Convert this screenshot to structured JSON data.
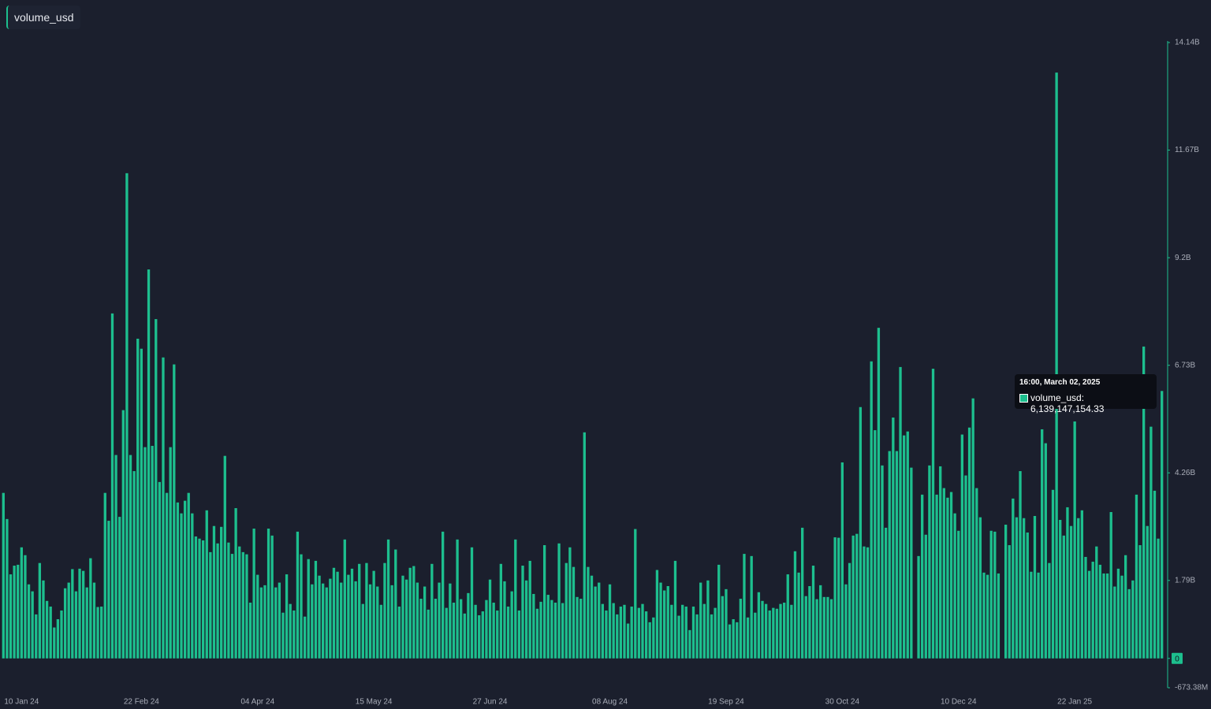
{
  "chart_data": {
    "type": "bar",
    "legend": "volume_usd",
    "series": [
      {
        "name": "volume_usd",
        "color": "#1dbf8e",
        "values": [
          3.8,
          3.2,
          1.93,
          2.13,
          2.15,
          2.55,
          2.37,
          1.7,
          1.54,
          1.01,
          2.19,
          1.79,
          1.32,
          1.19,
          0.71,
          0.9,
          1.1,
          1.61,
          1.74,
          2.05,
          1.54,
          2.06,
          2.01,
          1.63,
          2.3,
          1.74,
          1.18,
          1.19,
          3.8,
          3.16,
          7.92,
          4.67,
          3.25,
          5.7,
          11.14,
          4.67,
          4.3,
          7.34,
          7.11,
          4.85,
          8.93,
          4.88,
          7.79,
          4.05,
          6.91,
          3.8,
          4.85,
          6.75,
          3.58,
          3.33,
          3.62,
          3.8,
          3.33,
          2.8,
          2.75,
          2.71,
          3.4,
          2.44,
          3.04,
          2.64,
          3.02,
          4.65,
          2.66,
          2.4,
          3.45,
          2.57,
          2.44,
          2.39,
          1.28,
          2.98,
          1.92,
          1.63,
          1.68,
          2.98,
          2.82,
          1.63,
          1.74,
          1.05,
          1.93,
          1.25,
          1.1,
          2.91,
          2.39,
          0.96,
          2.28,
          1.7,
          2.24,
          1.9,
          1.72,
          1.63,
          1.83,
          2.08,
          1.99,
          1.74,
          2.73,
          1.92,
          2.06,
          1.77,
          2.17,
          1.25,
          2.19,
          1.7,
          2.01,
          1.65,
          1.23,
          2.19,
          2.73,
          1.68,
          2.5,
          1.19,
          1.9,
          1.81,
          2.08,
          2.12,
          1.74,
          1.37,
          1.65,
          1.12,
          2.17,
          1.37,
          1.74,
          2.91,
          1.16,
          1.72,
          1.28,
          2.73,
          1.36,
          1.03,
          1.5,
          2.55,
          1.23,
          0.99,
          1.08,
          1.34,
          1.81,
          1.28,
          1.1,
          2.17,
          1.77,
          1.19,
          1.54,
          2.73,
          1.1,
          2.13,
          1.79,
          2.24,
          1.48,
          1.14,
          1.3,
          2.6,
          1.46,
          1.34,
          1.28,
          2.64,
          1.27,
          2.19,
          2.55,
          2.1,
          1.41,
          1.37,
          5.19,
          2.1,
          1.9,
          1.65,
          1.74,
          1.25,
          1.1,
          1.7,
          1.27,
          1.01,
          1.19,
          1.23,
          0.8,
          1.19,
          2.97,
          1.16,
          1.25,
          1.08,
          0.83,
          0.94,
          2.03,
          1.74,
          1.56,
          1.66,
          1.23,
          2.24,
          0.98,
          1.23,
          1.19,
          0.65,
          1.19,
          1.01,
          1.74,
          1.25,
          1.79,
          1.01,
          1.16,
          2.15,
          1.43,
          1.59,
          0.78,
          0.9,
          0.83,
          1.37,
          2.4,
          0.94,
          2.35,
          1.05,
          1.52,
          1.32,
          1.25,
          1.1,
          1.16,
          1.14,
          1.25,
          1.28,
          1.93,
          1.23,
          2.46,
          1.97,
          3.0,
          1.43,
          1.66,
          2.13,
          1.36,
          1.68,
          1.41,
          1.41,
          1.36,
          2.78,
          2.77,
          4.5,
          1.7,
          2.19,
          2.82,
          2.86,
          5.77,
          2.57,
          2.55,
          6.82,
          5.24,
          7.59,
          4.43,
          3.0,
          4.76,
          5.53,
          4.76,
          6.69,
          5.12,
          5.21,
          4.38,
          null,
          2.35,
          3.76,
          2.84,
          4.43,
          6.65,
          3.76,
          4.41,
          3.91,
          3.69,
          3.82,
          3.33,
          2.93,
          5.14,
          4.2,
          5.3,
          5.97,
          3.91,
          3.24,
          1.97,
          1.92,
          2.93,
          2.91,
          1.95,
          null,
          3.07,
          2.6,
          3.67,
          3.24,
          4.3,
          3.22,
          2.89,
          1.99,
          3.27,
          1.97,
          5.26,
          4.94,
          2.19,
          3.87,
          13.45,
          3.18,
          2.82,
          3.47,
          3.04,
          5.44,
          3.22,
          3.4,
          2.33,
          2.01,
          2.22,
          2.57,
          2.15,
          1.95,
          1.95,
          3.36,
          1.65,
          2.06,
          1.9,
          2.37,
          1.59,
          1.79,
          3.76,
          2.6,
          7.16,
          3.04,
          5.32,
          3.85,
          2.75,
          6.14
        ]
      }
    ],
    "categories": [
      null,
      null,
      null,
      null,
      null,
      "10 Jan 24",
      null,
      null,
      null,
      null,
      null,
      null,
      null,
      null,
      null,
      null,
      null,
      null,
      null,
      null,
      null,
      null,
      null,
      null,
      null,
      null,
      null,
      null,
      null,
      null,
      null,
      null,
      null,
      null,
      null,
      null,
      null,
      null,
      "22 Feb 24",
      null,
      null,
      null,
      null,
      null,
      null,
      null,
      null,
      null,
      null,
      null,
      null,
      null,
      null,
      null,
      null,
      null,
      null,
      null,
      null,
      null,
      null,
      null,
      null,
      null,
      null,
      null,
      null,
      null,
      null,
      null,
      "04 Apr 24",
      null,
      null,
      null,
      null,
      null,
      null,
      null,
      null,
      null,
      null,
      null,
      null,
      null,
      null,
      null,
      null,
      null,
      null,
      null,
      null,
      null,
      null,
      null,
      null,
      null,
      null,
      null,
      null,
      null,
      null,
      null,
      "15 May 24",
      null,
      null,
      null,
      null,
      null,
      null,
      null,
      null,
      null,
      null,
      null,
      null,
      null,
      null,
      null,
      null,
      null,
      null,
      null,
      null,
      null,
      null,
      null,
      null,
      null,
      null,
      null,
      null,
      null,
      null,
      null,
      "27 Jun 24",
      null,
      null,
      null,
      null,
      null,
      null,
      null,
      null,
      null,
      null,
      null,
      null,
      null,
      null,
      null,
      null,
      null,
      null,
      null,
      null,
      null,
      null,
      null,
      null,
      null,
      null,
      null,
      null,
      null,
      null,
      null,
      null,
      "08 Aug 24",
      null,
      null,
      null,
      null,
      null,
      null,
      null,
      null,
      null,
      null,
      null,
      null,
      null,
      null,
      null,
      null,
      null,
      null,
      null,
      null,
      null,
      null,
      null,
      null,
      null,
      null,
      null,
      null,
      null,
      null,
      null,
      "19 Sep 24",
      null,
      null,
      null,
      null,
      null,
      null,
      null,
      null,
      null,
      null,
      null,
      null,
      null,
      null,
      null,
      null,
      null,
      null,
      null,
      null,
      null,
      null,
      null,
      null,
      null,
      null,
      null,
      null,
      null,
      null,
      null,
      "30 Oct 24",
      null,
      null,
      null,
      null,
      null,
      null,
      null,
      null,
      null,
      null,
      null,
      null,
      null,
      null,
      null,
      null,
      null,
      null,
      null,
      null,
      null,
      null,
      null,
      null,
      null,
      null,
      null,
      null,
      null,
      null,
      null,
      "10 Dec 24",
      null,
      null,
      null,
      null,
      null,
      null,
      null,
      null,
      null,
      null,
      null,
      null,
      null,
      null,
      null,
      null,
      null,
      null,
      null,
      null,
      null,
      null,
      null,
      null,
      null,
      null,
      null,
      null,
      null,
      null,
      null,
      "22 Jan 25",
      null,
      null,
      null,
      null,
      null,
      null,
      null,
      null,
      null,
      null,
      null,
      null,
      null,
      null,
      null,
      null,
      null,
      null,
      null,
      null,
      null,
      null,
      null,
      null
    ],
    "ylim": [
      -0.67338,
      14.14
    ],
    "yticks": [
      {
        "value": 14.14,
        "label": "14.14B"
      },
      {
        "value": 11.67,
        "label": "11.67B"
      },
      {
        "value": 9.2,
        "label": "9.2B"
      },
      {
        "value": 6.73,
        "label": "6.73B"
      },
      {
        "value": 4.26,
        "label": "4.26B"
      },
      {
        "value": 1.79,
        "label": "1.79B"
      },
      0,
      {
        "value": -0.67338,
        "label": "-673.38M"
      }
    ],
    "tooltip": {
      "title": "16:00, March 02, 2025",
      "text": "volume_usd: 6,139,147,154.33"
    }
  }
}
